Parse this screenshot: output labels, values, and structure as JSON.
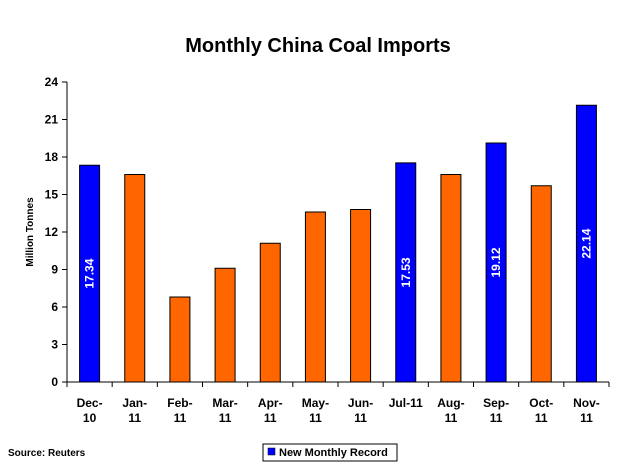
{
  "chart_data": {
    "type": "bar",
    "title": "Monthly China Coal Imports",
    "ylabel": "Million Tonnes",
    "xlabel": "",
    "ylim": [
      0,
      24
    ],
    "yticks": [
      0,
      3,
      6,
      9,
      12,
      15,
      18,
      21,
      24
    ],
    "categories": [
      [
        "Dec-",
        "10"
      ],
      [
        "Jan-",
        "11"
      ],
      [
        "Feb-",
        "11"
      ],
      [
        "Mar-",
        "11"
      ],
      [
        "Apr-",
        "11"
      ],
      [
        "May-",
        "11"
      ],
      [
        "Jun-",
        "11"
      ],
      [
        "Jul-11"
      ],
      [
        "Aug-",
        "11"
      ],
      [
        "Sep-",
        "11"
      ],
      [
        "Oct-",
        "11"
      ],
      [
        "Nov-",
        "11"
      ]
    ],
    "values": [
      17.34,
      16.6,
      6.8,
      9.1,
      11.1,
      13.6,
      13.8,
      17.53,
      16.6,
      19.12,
      15.7,
      22.14
    ],
    "record": [
      true,
      false,
      false,
      false,
      false,
      false,
      false,
      true,
      false,
      true,
      false,
      true
    ],
    "data_labels": [
      "17.34",
      "",
      "",
      "",
      "",
      "",
      "",
      "17.53",
      "",
      "19.12",
      "",
      "22.14"
    ],
    "grid": false,
    "legend": {
      "placement": "bottom",
      "entries": [
        {
          "name": "New Monthly Record",
          "color": "#0000ff"
        }
      ]
    },
    "source_note": "Source: Reuters",
    "colors": {
      "record": "#0000ff",
      "normal": "#ff6600",
      "outline": "#000000"
    }
  }
}
